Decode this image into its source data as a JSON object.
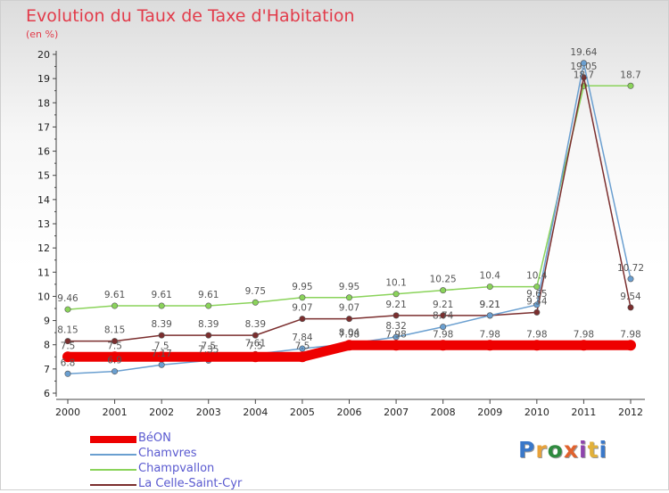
{
  "title": "Evolution du Taux de Taxe d'Habitation",
  "subtitle": "(en %)",
  "logo": "Proxiti",
  "logo_colors": [
    "#3a78c9",
    "#e8a23a",
    "#2e8a3e",
    "#e0622e",
    "#8e44ad",
    "#e2b13a",
    "#3a78c9"
  ],
  "chart_data": {
    "type": "line",
    "title": "Evolution du Taux de Taxe d'Habitation",
    "subtitle": "(en %)",
    "xlabel": "",
    "ylabel": "(en %)",
    "ylim": [
      6,
      20
    ],
    "yticks": [
      "6",
      "7",
      "8",
      "9",
      "10",
      "11",
      "12",
      "13",
      "14",
      "15",
      "16",
      "17",
      "18",
      "19",
      "20"
    ],
    "categories": [
      "2000",
      "2001",
      "2002",
      "2003",
      "2004",
      "2005",
      "2006",
      "2007",
      "2008",
      "2009",
      "2010",
      "2011",
      "2012"
    ],
    "grid": false,
    "legend_position": "bottom-left",
    "series": [
      {
        "name": "BéON",
        "color": "#ee0000",
        "values": [
          7.5,
          7.5,
          7.5,
          7.5,
          7.5,
          7.5,
          7.98,
          7.98,
          7.98,
          7.98,
          7.98,
          7.98,
          7.98
        ],
        "labels": [
          "7.5",
          "7.5",
          "7.5",
          "7.5",
          "7.5",
          "7.5",
          "7.98",
          "7.98",
          "7.98",
          "7.98",
          "7.98",
          "7.98",
          "7.98"
        ]
      },
      {
        "name": "Chamvres",
        "color": "#6a9fd0",
        "values": [
          6.8,
          6.9,
          7.17,
          7.35,
          7.61,
          7.84,
          8.04,
          8.32,
          8.74,
          9.21,
          9.65,
          19.64,
          10.72
        ],
        "labels": [
          "6.8",
          "6.9",
          "7.17",
          "7.35",
          "7.61",
          "7.84",
          "8.04",
          "8.32",
          "8.74",
          "9.21",
          "9.65",
          "19.64",
          "10.72"
        ]
      },
      {
        "name": "Champvallon",
        "color": "#8ad35a",
        "values": [
          9.46,
          9.61,
          9.61,
          9.61,
          9.75,
          9.95,
          9.95,
          10.1,
          10.25,
          10.4,
          10.4,
          18.7,
          18.7
        ],
        "labels": [
          "9.46",
          "9.61",
          "9.61",
          "9.61",
          "9.75",
          "9.95",
          "9.95",
          "10.1",
          "10.25",
          "10.4",
          "10.4",
          "18.7",
          "18.7"
        ]
      },
      {
        "name": "La Celle-Saint-Cyr",
        "color": "#7b2e2e",
        "values": [
          8.15,
          8.15,
          8.39,
          8.39,
          8.39,
          9.07,
          9.07,
          9.21,
          9.21,
          9.21,
          9.34,
          19.05,
          9.54
        ],
        "labels": [
          "8.15",
          "8.15",
          "8.39",
          "8.39",
          "8.39",
          "9.07",
          "9.07",
          "9.21",
          "9.21",
          "9.21",
          "9.34",
          "19.05",
          "9.54"
        ]
      }
    ]
  }
}
